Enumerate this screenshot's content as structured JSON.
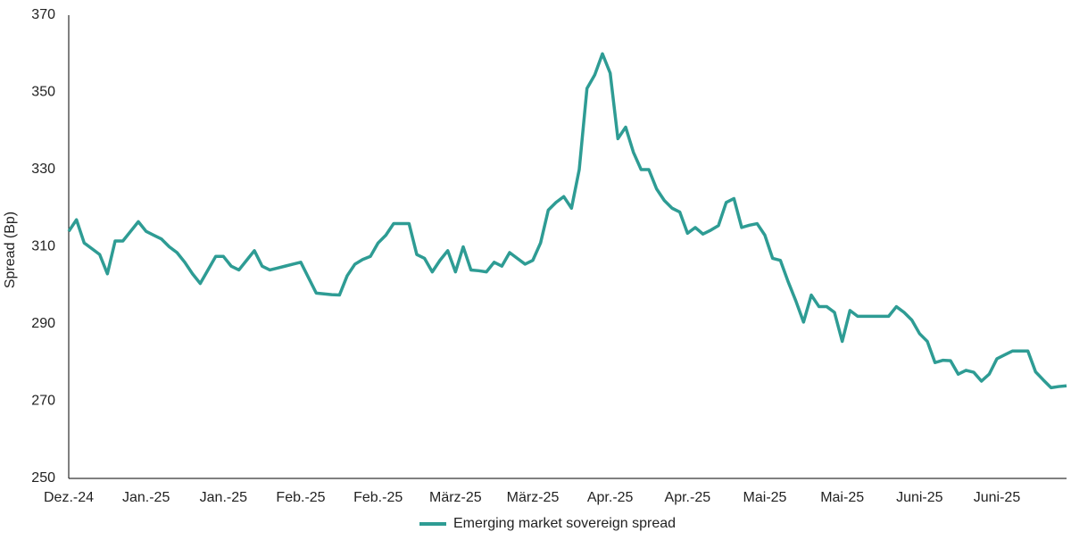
{
  "chart_data": {
    "type": "line",
    "y_label": "Spread (Bp)",
    "categories": [
      "Dez.-24",
      null,
      null,
      null,
      null,
      null,
      null,
      null,
      null,
      null,
      "Jan.-25",
      null,
      null,
      null,
      null,
      null,
      null,
      null,
      null,
      null,
      "Jan.-25",
      null,
      null,
      null,
      null,
      null,
      null,
      null,
      null,
      null,
      "Feb.-25",
      null,
      null,
      null,
      null,
      null,
      null,
      null,
      null,
      null,
      "Feb.-25",
      null,
      null,
      null,
      null,
      null,
      null,
      null,
      null,
      null,
      "März-25",
      null,
      null,
      null,
      null,
      null,
      null,
      null,
      null,
      null,
      "März-25",
      null,
      null,
      null,
      null,
      null,
      null,
      null,
      null,
      null,
      "Apr.-25",
      null,
      null,
      null,
      null,
      null,
      null,
      null,
      null,
      null,
      "Apr.-25",
      null,
      null,
      null,
      null,
      null,
      null,
      null,
      null,
      null,
      "Mai-25",
      null,
      null,
      null,
      null,
      null,
      null,
      null,
      null,
      null,
      "Mai-25",
      null,
      null,
      null,
      null,
      null,
      null,
      null,
      null,
      null,
      "Juni-25",
      null,
      null,
      null,
      null,
      null,
      null,
      null,
      null,
      null,
      "Juni-25",
      null,
      null,
      null,
      null,
      null,
      null,
      null,
      null,
      null
    ],
    "series": [
      {
        "name": "Emerging market sovereign spread",
        "color": "#2e9c94",
        "values": [
          314,
          317,
          311,
          309.5,
          308,
          303,
          311.5,
          311.5,
          314,
          316.5,
          314,
          313,
          312,
          310,
          308.5,
          306,
          303,
          300.5,
          304,
          307.5,
          307.5,
          305,
          304,
          306.5,
          309,
          305,
          304,
          304.5,
          305,
          305.5,
          306,
          302,
          298,
          297.8,
          297.6,
          297.5,
          302.5,
          305.5,
          306.7,
          307.5,
          311,
          313,
          316,
          316,
          316,
          308,
          307,
          303.5,
          306.5,
          309,
          303.5,
          310,
          304,
          303.8,
          303.5,
          306,
          305,
          308.5,
          307,
          305.5,
          306.5,
          311,
          319.5,
          321.5,
          323,
          320,
          330,
          351,
          354.5,
          360,
          355,
          338,
          341,
          334.5,
          330,
          330,
          325,
          322,
          320,
          319,
          313.5,
          315,
          313.3,
          314.3,
          315.5,
          321.5,
          322.5,
          315,
          315.6,
          316,
          313,
          307,
          306.5,
          301,
          296,
          290.5,
          297.5,
          294.5,
          294.5,
          293,
          285.5,
          293.5,
          292,
          292,
          292,
          292,
          292,
          294.5,
          293,
          291,
          287.5,
          285.5,
          280,
          280.6,
          280.5,
          277,
          278,
          277.5,
          275.2,
          277,
          281,
          282,
          283,
          283,
          283,
          277.6,
          275.5,
          273.5,
          273.8,
          274
        ]
      }
    ],
    "ylim": [
      250,
      370
    ],
    "yticks": [
      250,
      270,
      290,
      310,
      330,
      350,
      370
    ],
    "grid": false,
    "legend": "bottom"
  }
}
